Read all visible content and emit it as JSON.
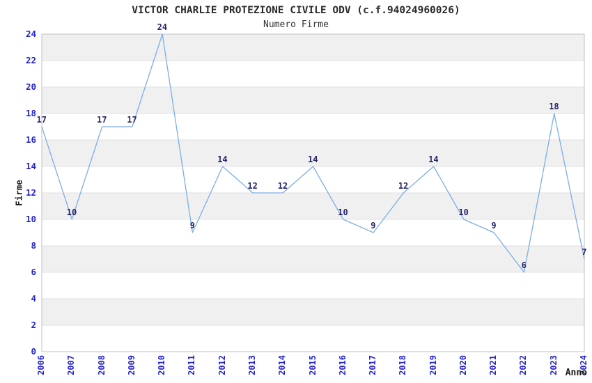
{
  "chart_data": {
    "type": "line",
    "title": "VICTOR CHARLIE PROTEZIONE CIVILE ODV (c.f.94024960026)",
    "subtitle": "Numero Firme",
    "xlabel": "Anno",
    "ylabel": "Firme",
    "categories": [
      "2006",
      "2007",
      "2008",
      "2009",
      "2010",
      "2011",
      "2012",
      "2013",
      "2014",
      "2015",
      "2016",
      "2017",
      "2018",
      "2019",
      "2020",
      "2021",
      "2022",
      "2023",
      "2024"
    ],
    "values": [
      17,
      10,
      17,
      17,
      24,
      9,
      14,
      12,
      12,
      14,
      10,
      9,
      12,
      14,
      10,
      9,
      6,
      18,
      7
    ],
    "ylim": [
      0,
      24
    ],
    "ytick_step": 2,
    "grid": "horizontal",
    "banding": "alternating-2-unit-bands",
    "legend": "none",
    "data_labels": true,
    "colors": {
      "line": "#7caee6",
      "tick_label": "#2424cc",
      "data_label": "#262669",
      "band_fill": "#f0f0f0",
      "gridline": "#e0e0e0",
      "plot_border": "#c0c0c0",
      "title_text": "#2b2b2b",
      "background": "#ffffff"
    }
  }
}
